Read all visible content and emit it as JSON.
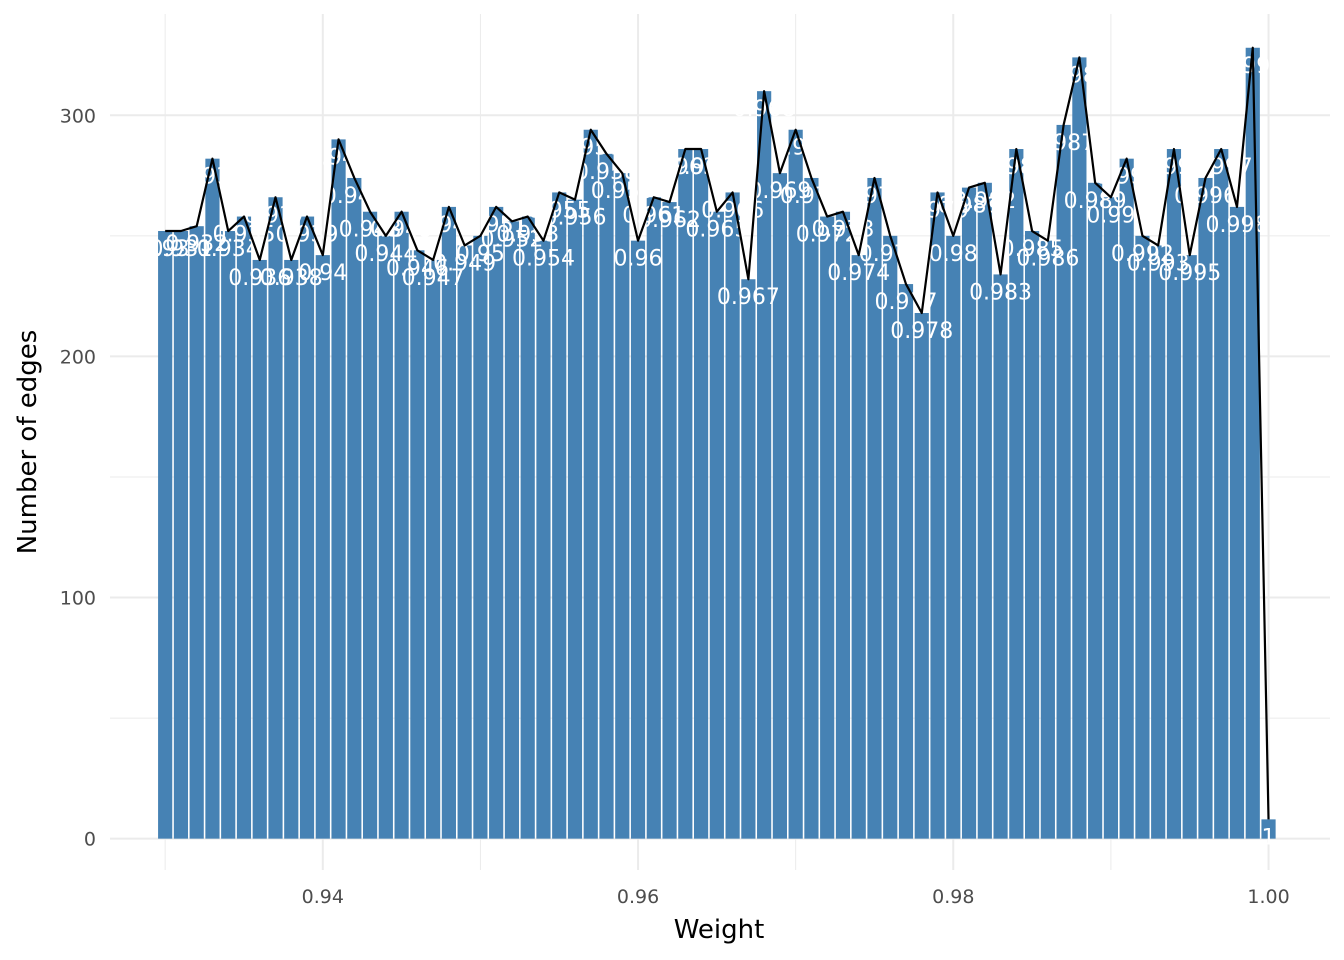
{
  "chart_data": {
    "type": "bar",
    "xlabel": "Weight",
    "ylabel": "Number of edges",
    "x_ticks": [
      0.94,
      0.96,
      0.98,
      1.0
    ],
    "x_tick_labels": [
      "0.94",
      "0.96",
      "0.98",
      "1.00"
    ],
    "y_ticks": [
      0,
      100,
      200,
      300
    ],
    "y_tick_labels": [
      "0",
      "100",
      "200",
      "300"
    ],
    "xlim": [
      0.9265,
      1.0039
    ],
    "ylim": [
      -13,
      342
    ],
    "grid": true,
    "bar_color": "#4682b4",
    "line_color": "#000000",
    "label_color": "#ffffff",
    "overlay_line": true,
    "points": [
      {
        "x": 0.93,
        "y": 252,
        "label": "0.93"
      },
      {
        "x": 0.931,
        "y": 252,
        "label": "0.931"
      },
      {
        "x": 0.932,
        "y": 254,
        "label": "0.932"
      },
      {
        "x": 0.933,
        "y": 282,
        "label": "0.933"
      },
      {
        "x": 0.934,
        "y": 252,
        "label": "0.934"
      },
      {
        "x": 0.935,
        "y": 258,
        "label": "0.935"
      },
      {
        "x": 0.936,
        "y": 240,
        "label": "0.936"
      },
      {
        "x": 0.937,
        "y": 266,
        "label": "0.937"
      },
      {
        "x": 0.938,
        "y": 240,
        "label": "0.938"
      },
      {
        "x": 0.939,
        "y": 258,
        "label": "0.939"
      },
      {
        "x": 0.94,
        "y": 242,
        "label": "0.94"
      },
      {
        "x": 0.941,
        "y": 290,
        "label": "0.941"
      },
      {
        "x": 0.942,
        "y": 274,
        "label": "0.942"
      },
      {
        "x": 0.943,
        "y": 260,
        "label": "0.943"
      },
      {
        "x": 0.944,
        "y": 250,
        "label": "0.944"
      },
      {
        "x": 0.945,
        "y": 260,
        "label": "0.945"
      },
      {
        "x": 0.946,
        "y": 244,
        "label": "0.946"
      },
      {
        "x": 0.947,
        "y": 240,
        "label": "0.947"
      },
      {
        "x": 0.948,
        "y": 262,
        "label": "0.948"
      },
      {
        "x": 0.949,
        "y": 246,
        "label": "0.949"
      },
      {
        "x": 0.95,
        "y": 250,
        "label": "0.95"
      },
      {
        "x": 0.951,
        "y": 262,
        "label": "0.951"
      },
      {
        "x": 0.952,
        "y": 256,
        "label": "0.952"
      },
      {
        "x": 0.953,
        "y": 258,
        "label": "0.953"
      },
      {
        "x": 0.954,
        "y": 248,
        "label": "0.954"
      },
      {
        "x": 0.955,
        "y": 268,
        "label": "0.955"
      },
      {
        "x": 0.956,
        "y": 265,
        "label": "0.956"
      },
      {
        "x": 0.957,
        "y": 294,
        "label": "0.957"
      },
      {
        "x": 0.958,
        "y": 284,
        "label": "0.958"
      },
      {
        "x": 0.959,
        "y": 276,
        "label": "0.959"
      },
      {
        "x": 0.96,
        "y": 248,
        "label": "0.96"
      },
      {
        "x": 0.961,
        "y": 266,
        "label": "0.961"
      },
      {
        "x": 0.962,
        "y": 264,
        "label": "0.962"
      },
      {
        "x": 0.963,
        "y": 286,
        "label": "0.963"
      },
      {
        "x": 0.964,
        "y": 286,
        "label": "0.964"
      },
      {
        "x": 0.965,
        "y": 260,
        "label": "0.965"
      },
      {
        "x": 0.966,
        "y": 268,
        "label": "0.966"
      },
      {
        "x": 0.967,
        "y": 232,
        "label": "0.967"
      },
      {
        "x": 0.968,
        "y": 310,
        "label": "0.968"
      },
      {
        "x": 0.969,
        "y": 276,
        "label": "0.969"
      },
      {
        "x": 0.97,
        "y": 294,
        "label": "0.97"
      },
      {
        "x": 0.971,
        "y": 274,
        "label": "0.971"
      },
      {
        "x": 0.972,
        "y": 258,
        "label": "0.972"
      },
      {
        "x": 0.973,
        "y": 260,
        "label": "0.973"
      },
      {
        "x": 0.974,
        "y": 242,
        "label": "0.974"
      },
      {
        "x": 0.975,
        "y": 274,
        "label": "0.975"
      },
      {
        "x": 0.976,
        "y": 250,
        "label": "0.976"
      },
      {
        "x": 0.977,
        "y": 230,
        "label": "0.977"
      },
      {
        "x": 0.978,
        "y": 218,
        "label": "0.978"
      },
      {
        "x": 0.979,
        "y": 268,
        "label": "0.979"
      },
      {
        "x": 0.98,
        "y": 250,
        "label": "0.98"
      },
      {
        "x": 0.981,
        "y": 270,
        "label": "0.981"
      },
      {
        "x": 0.982,
        "y": 272,
        "label": "0.982"
      },
      {
        "x": 0.983,
        "y": 234,
        "label": "0.983"
      },
      {
        "x": 0.984,
        "y": 286,
        "label": "0.984"
      },
      {
        "x": 0.985,
        "y": 252,
        "label": "0.985"
      },
      {
        "x": 0.986,
        "y": 248,
        "label": "0.986"
      },
      {
        "x": 0.987,
        "y": 296,
        "label": "0.987"
      },
      {
        "x": 0.988,
        "y": 324,
        "label": "0.988"
      },
      {
        "x": 0.989,
        "y": 272,
        "label": "0.989"
      },
      {
        "x": 0.99,
        "y": 266,
        "label": "0.99"
      },
      {
        "x": 0.991,
        "y": 282,
        "label": "0.991"
      },
      {
        "x": 0.992,
        "y": 250,
        "label": "0.992"
      },
      {
        "x": 0.993,
        "y": 246,
        "label": "0.993"
      },
      {
        "x": 0.994,
        "y": 286,
        "label": "0.994"
      },
      {
        "x": 0.995,
        "y": 242,
        "label": "0.995"
      },
      {
        "x": 0.996,
        "y": 274,
        "label": "0.996"
      },
      {
        "x": 0.997,
        "y": 286,
        "label": "0.997"
      },
      {
        "x": 0.998,
        "y": 262,
        "label": "0.998"
      },
      {
        "x": 0.999,
        "y": 328,
        "label": "0.999"
      },
      {
        "x": 1.0,
        "y": 8,
        "label": "1"
      }
    ]
  }
}
